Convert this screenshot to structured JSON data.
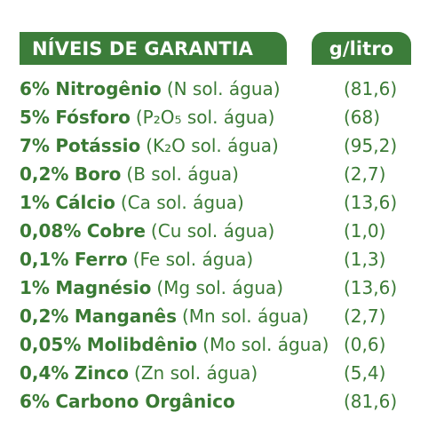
{
  "header": {
    "title": "NÍVEIS DE GARANTIA",
    "unit": "g/litro"
  },
  "rows": [
    {
      "pct": "6%",
      "nutrient": "Nitrogênio",
      "detail": "(N sol. água)",
      "value": "(81,6)"
    },
    {
      "pct": "5%",
      "nutrient": "Fósforo",
      "detail": "(P₂O₅ sol. água)",
      "value": "(68)"
    },
    {
      "pct": "7%",
      "nutrient": "Potássio",
      "detail": "(K₂O sol. água)",
      "value": "(95,2)"
    },
    {
      "pct": "0,2%",
      "nutrient": "Boro",
      "detail": "(B sol. água)",
      "value": "(2,7)"
    },
    {
      "pct": "1%",
      "nutrient": "Cálcio",
      "detail": "(Ca sol. água)",
      "value": "(13,6)"
    },
    {
      "pct": "0,08%",
      "nutrient": "Cobre",
      "detail": "(Cu sol. água)",
      "value": "(1,0)"
    },
    {
      "pct": "0,1%",
      "nutrient": "Ferro",
      "detail": "(Fe sol. água)",
      "value": "(1,3)"
    },
    {
      "pct": "1%",
      "nutrient": "Magnésio",
      "detail": "(Mg sol. água)",
      "value": "(13,6)"
    },
    {
      "pct": "0,2%",
      "nutrient": "Manganês",
      "detail": "(Mn sol. água)",
      "value": "(2,7)"
    },
    {
      "pct": "0,05%",
      "nutrient": "Molibdênio",
      "detail": "(Mo sol. água)",
      "value": "(0,6)"
    },
    {
      "pct": "0,4%",
      "nutrient": "Zinco",
      "detail": "(Zn sol. água)",
      "value": "(5,4)"
    },
    {
      "pct": "6%",
      "nutrient": "Carbono Orgânico",
      "detail": "",
      "value": "(81,6)"
    }
  ],
  "colors": {
    "brand_green": "#3c7d3a",
    "text_green": "#3a7a34"
  }
}
